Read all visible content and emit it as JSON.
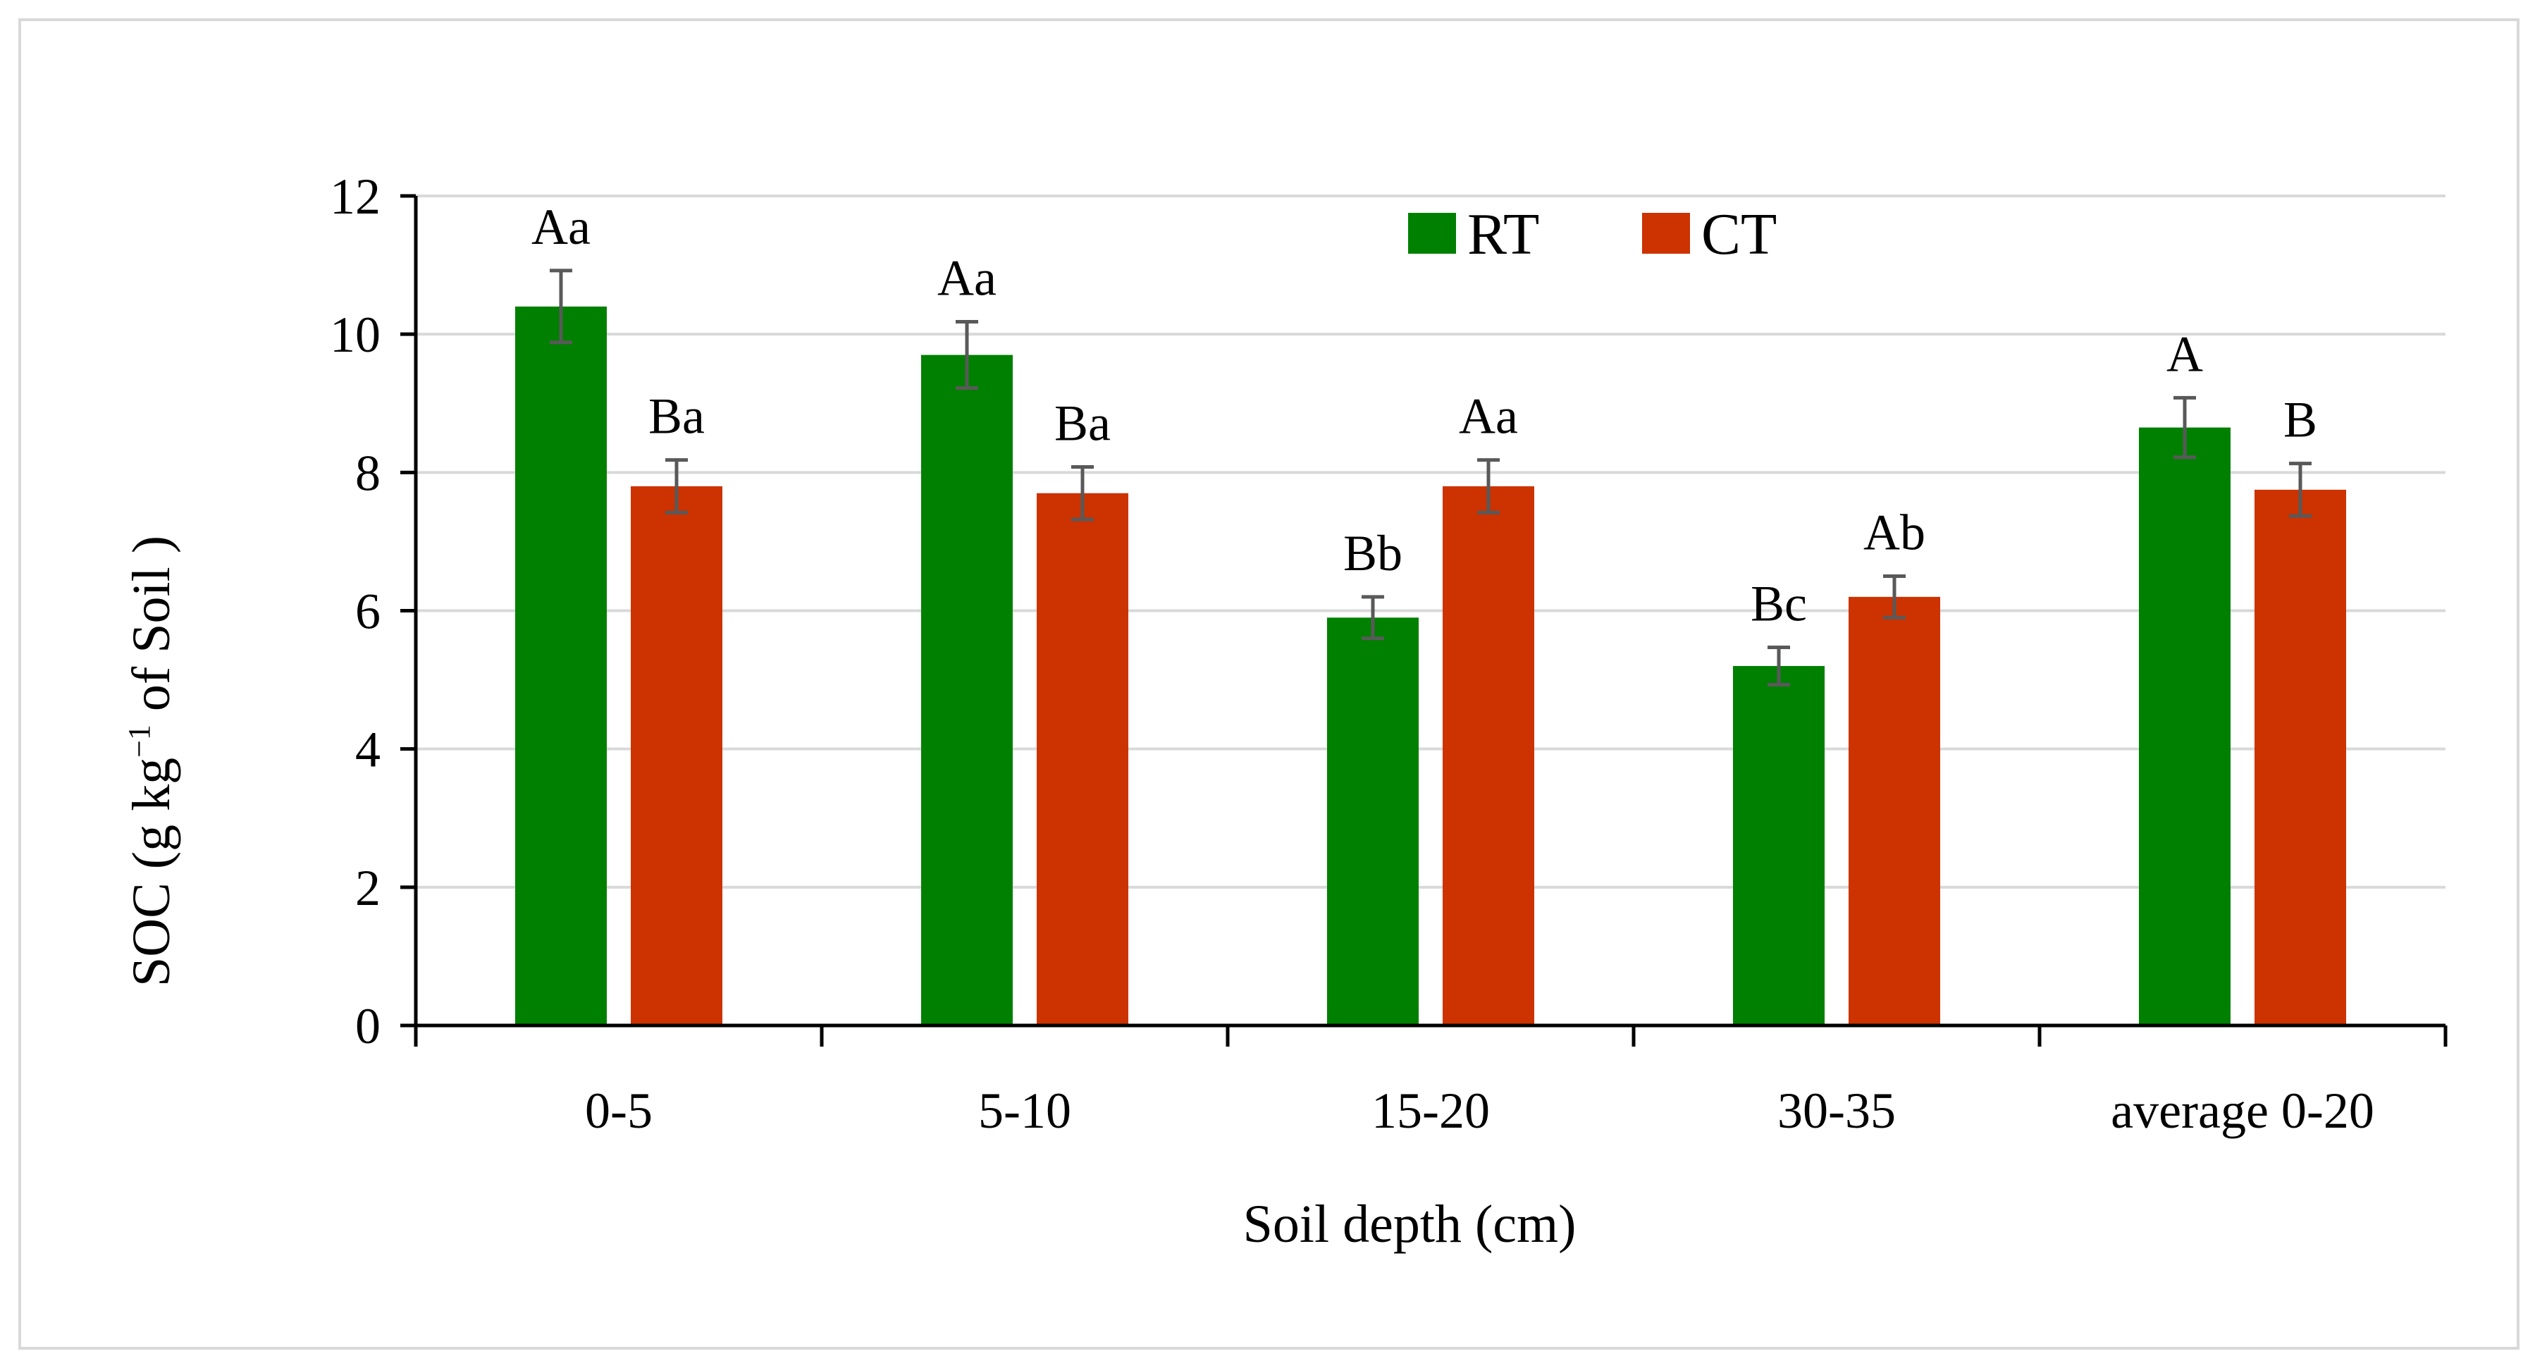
{
  "chart_data": {
    "type": "bar",
    "title": "",
    "xlabel": "Soil depth (cm)",
    "ylabel": {
      "pre": "SOC (g  kg",
      "sup": "−1",
      "post": " of Soil )"
    },
    "ylim": [
      0,
      12
    ],
    "yticks": [
      "0",
      "2",
      "4",
      "6",
      "8",
      "10",
      "12"
    ],
    "grid": true,
    "legend_position": "top-center",
    "categories": [
      "0-5",
      "5-10",
      "15-20",
      "30-35",
      "average 0-20"
    ],
    "series": [
      {
        "name": "RT",
        "color": "#008000",
        "values": [
          10.4,
          9.7,
          5.9,
          5.2,
          8.65
        ],
        "errors": [
          0.52,
          0.48,
          0.3,
          0.27,
          0.43
        ],
        "labels": [
          "Aa",
          "Aa",
          "Bb",
          "Bc",
          "A"
        ]
      },
      {
        "name": "CT",
        "color": "#CC3300",
        "values": [
          7.8,
          7.7,
          7.8,
          6.2,
          7.75
        ],
        "errors": [
          0.38,
          0.38,
          0.38,
          0.3,
          0.38
        ],
        "labels": [
          "Ba",
          "Ba",
          "Aa",
          "Ab",
          "B"
        ]
      }
    ]
  }
}
